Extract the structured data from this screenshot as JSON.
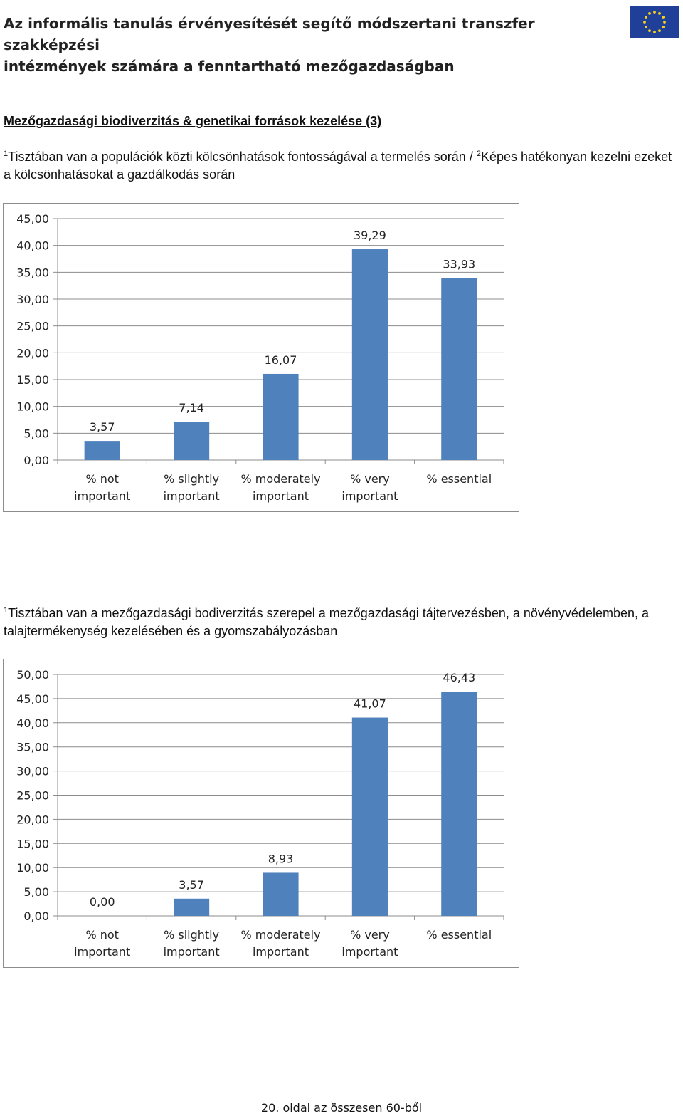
{
  "header": {
    "title_line1": "Az informális tanulás érvényesítését segítő módszertani transzfer szakképzési",
    "title_line2": "intézmények számára a fenntartható mezőgazdaságban",
    "logo_icon": "eu-flag-icon",
    "logo_color": "#1f3f99",
    "logo_star_color": "#f7d117"
  },
  "section": {
    "title": "Mezőgazdasági biodiverzitás & genetikai források kezelése (3)"
  },
  "question1": {
    "sup1": "1",
    "part1": "Tisztában van a populációk közti kölcsönhatások fontosságával a termelés során / ",
    "sup2": "2",
    "part2": "Képes hatékonyan kezelni ezeket a kölcsönhatásokat a gazdálkodás során"
  },
  "question2": {
    "sup1": "1",
    "text": "Tisztában van a mezőgazdasági bodiverzitás szerepel a mezőgazdasági tájtervezésben, a növényvédelemben, a talajtermékenység kezelésében és a gyomszabályozásban"
  },
  "chart_data": [
    {
      "type": "bar",
      "categories": [
        [
          "% not",
          "important"
        ],
        [
          "% slightly",
          "important"
        ],
        [
          "% moderately",
          "important"
        ],
        [
          "% very",
          "important"
        ],
        [
          "% essential"
        ]
      ],
      "values": [
        3.57,
        7.14,
        16.07,
        39.29,
        33.93
      ],
      "value_labels": [
        "3,57",
        "7,14",
        "16,07",
        "39,29",
        "33,93"
      ],
      "ylim": [
        0,
        45
      ],
      "yticks": [
        "0,00",
        "5,00",
        "10,00",
        "15,00",
        "20,00",
        "25,00",
        "30,00",
        "35,00",
        "40,00",
        "45,00"
      ],
      "ytick_step": 5,
      "bar_color": "#4f81bd",
      "grid": true,
      "title": "",
      "xlabel": "",
      "ylabel": ""
    },
    {
      "type": "bar",
      "categories": [
        [
          "% not",
          "important"
        ],
        [
          "% slightly",
          "important"
        ],
        [
          "% moderately",
          "important"
        ],
        [
          "% very",
          "important"
        ],
        [
          "% essential"
        ]
      ],
      "values": [
        0.0,
        3.57,
        8.93,
        41.07,
        46.43
      ],
      "value_labels": [
        "0,00",
        "3,57",
        "8,93",
        "41,07",
        "46,43"
      ],
      "ylim": [
        0,
        50
      ],
      "yticks": [
        "0,00",
        "5,00",
        "10,00",
        "15,00",
        "20,00",
        "25,00",
        "30,00",
        "35,00",
        "40,00",
        "45,00",
        "50,00"
      ],
      "ytick_step": 5,
      "bar_color": "#4f81bd",
      "grid": true,
      "title": "",
      "xlabel": "",
      "ylabel": ""
    }
  ],
  "footer": {
    "page_label": "20. oldal az összesen 60-ből"
  }
}
